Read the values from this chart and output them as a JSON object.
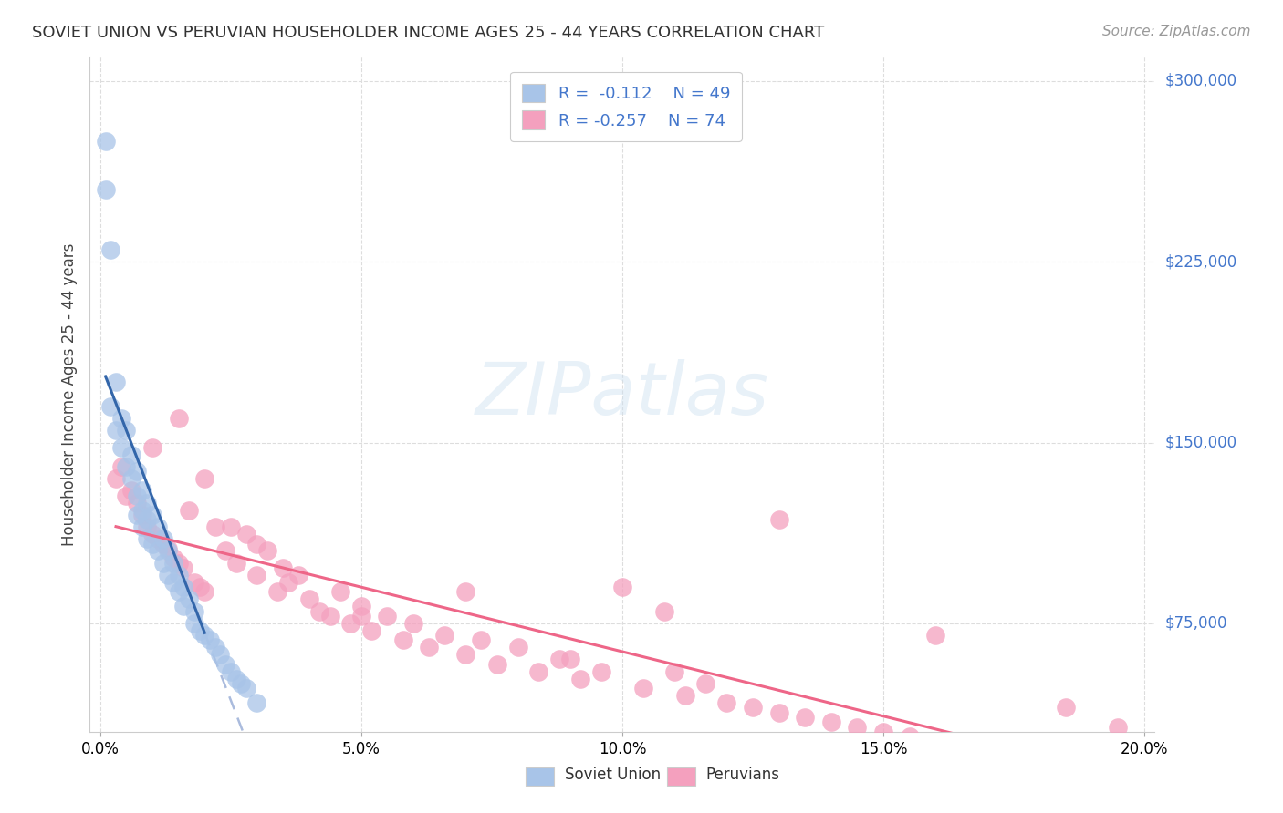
{
  "title": "SOVIET UNION VS PERUVIAN HOUSEHOLDER INCOME AGES 25 - 44 YEARS CORRELATION CHART",
  "source": "Source: ZipAtlas.com",
  "ylabel": "Householder Income Ages 25 - 44 years",
  "xlim": [
    -0.002,
    0.202
  ],
  "ylim": [
    30000,
    310000
  ],
  "soviet_R": "-0.112",
  "soviet_N": "49",
  "peruvian_R": "-0.257",
  "peruvian_N": "74",
  "soviet_color": "#a8c4e8",
  "peruvian_color": "#f4a0be",
  "soviet_line_color": "#3366aa",
  "peruvian_line_color": "#ee6688",
  "dashed_line_color": "#aabbdd",
  "legend_text_color": "#4477cc",
  "background_color": "#ffffff",
  "right_label_color": "#4477cc",
  "ytick_vals": [
    75000,
    150000,
    225000,
    300000
  ],
  "ytick_labels": [
    "$75,000",
    "$150,000",
    "$225,000",
    "$300,000"
  ],
  "xtick_vals": [
    0.0,
    0.05,
    0.1,
    0.15,
    0.2
  ],
  "soviet_x": [
    0.001,
    0.001,
    0.002,
    0.002,
    0.003,
    0.003,
    0.004,
    0.004,
    0.005,
    0.005,
    0.006,
    0.006,
    0.007,
    0.007,
    0.007,
    0.008,
    0.008,
    0.008,
    0.009,
    0.009,
    0.009,
    0.01,
    0.01,
    0.011,
    0.011,
    0.012,
    0.012,
    0.013,
    0.013,
    0.014,
    0.014,
    0.015,
    0.015,
    0.016,
    0.016,
    0.017,
    0.018,
    0.018,
    0.019,
    0.02,
    0.021,
    0.022,
    0.023,
    0.024,
    0.025,
    0.026,
    0.027,
    0.028,
    0.03
  ],
  "soviet_y": [
    275000,
    255000,
    230000,
    165000,
    175000,
    155000,
    160000,
    148000,
    155000,
    140000,
    145000,
    135000,
    138000,
    128000,
    120000,
    130000,
    122000,
    115000,
    125000,
    118000,
    110000,
    120000,
    108000,
    115000,
    105000,
    110000,
    100000,
    105000,
    95000,
    100000,
    92000,
    95000,
    88000,
    90000,
    82000,
    85000,
    80000,
    75000,
    72000,
    70000,
    68000,
    65000,
    62000,
    58000,
    55000,
    52000,
    50000,
    48000,
    42000
  ],
  "peruvian_x": [
    0.003,
    0.004,
    0.005,
    0.006,
    0.007,
    0.008,
    0.009,
    0.01,
    0.011,
    0.012,
    0.013,
    0.014,
    0.015,
    0.016,
    0.017,
    0.018,
    0.019,
    0.02,
    0.022,
    0.024,
    0.026,
    0.028,
    0.03,
    0.032,
    0.034,
    0.036,
    0.038,
    0.04,
    0.042,
    0.044,
    0.046,
    0.048,
    0.05,
    0.052,
    0.055,
    0.058,
    0.06,
    0.063,
    0.066,
    0.07,
    0.073,
    0.076,
    0.08,
    0.084,
    0.088,
    0.092,
    0.096,
    0.1,
    0.104,
    0.108,
    0.112,
    0.116,
    0.12,
    0.125,
    0.13,
    0.135,
    0.14,
    0.145,
    0.15,
    0.155,
    0.01,
    0.015,
    0.02,
    0.025,
    0.03,
    0.035,
    0.05,
    0.07,
    0.09,
    0.11,
    0.13,
    0.16,
    0.185,
    0.195
  ],
  "peruvian_y": [
    135000,
    140000,
    128000,
    130000,
    125000,
    120000,
    115000,
    112000,
    110000,
    108000,
    106000,
    102000,
    100000,
    98000,
    122000,
    92000,
    90000,
    88000,
    115000,
    105000,
    100000,
    112000,
    95000,
    105000,
    88000,
    92000,
    95000,
    85000,
    80000,
    78000,
    88000,
    75000,
    82000,
    72000,
    78000,
    68000,
    75000,
    65000,
    70000,
    62000,
    68000,
    58000,
    65000,
    55000,
    60000,
    52000,
    55000,
    90000,
    48000,
    80000,
    45000,
    50000,
    42000,
    40000,
    38000,
    36000,
    34000,
    32000,
    30000,
    28000,
    148000,
    160000,
    135000,
    115000,
    108000,
    98000,
    78000,
    88000,
    60000,
    55000,
    118000,
    70000,
    40000,
    32000
  ]
}
